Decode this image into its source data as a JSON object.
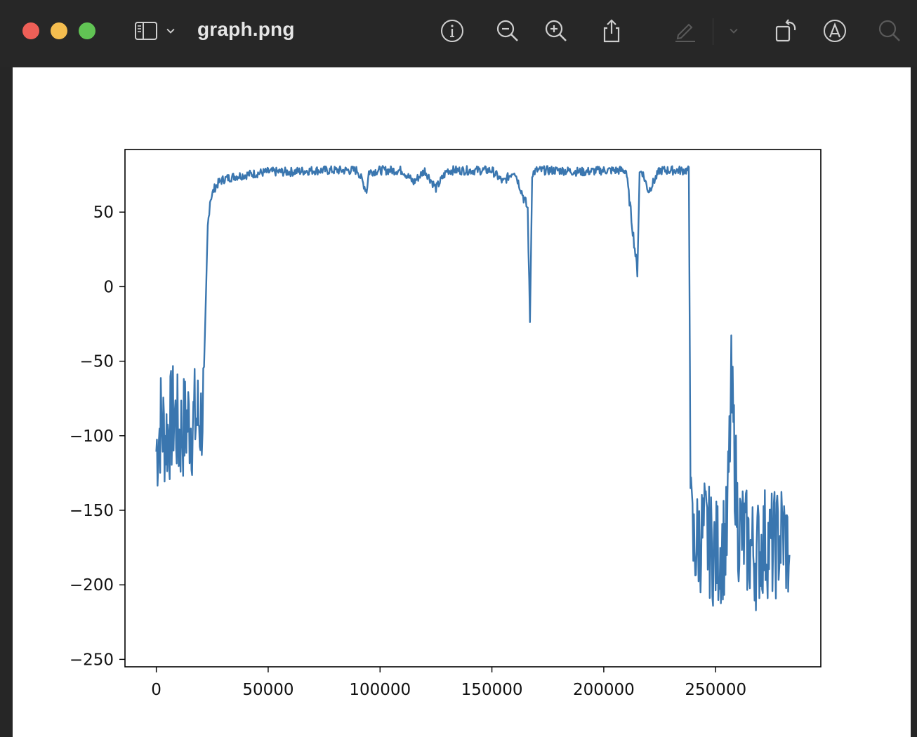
{
  "window": {
    "title": "graph.png"
  },
  "toolbar": {
    "icons": [
      "sidebar-icon",
      "chevron-down-icon",
      "info-icon",
      "zoom-out-icon",
      "zoom-in-icon",
      "share-icon",
      "markup-pen-icon",
      "chevron-down-icon",
      "rotate-icon",
      "annotate-icon",
      "search-icon"
    ]
  },
  "colors": {
    "titlebar": "#272727",
    "series": "#3a76af",
    "close": "#ee5f57",
    "minimize": "#f4bd4f",
    "maximize": "#61c454"
  },
  "chart_data": {
    "type": "line",
    "title": "",
    "xlabel": "",
    "ylabel": "",
    "xlim": [
      -14000,
      297000
    ],
    "ylim": [
      -255,
      92
    ],
    "xticks": [
      0,
      50000,
      100000,
      150000,
      200000,
      250000
    ],
    "xtick_labels": [
      "0",
      "50000",
      "100000",
      "150000",
      "200000",
      "250000"
    ],
    "yticks": [
      50,
      0,
      -50,
      -100,
      -150,
      -200,
      -250
    ],
    "ytick_labels": [
      "50",
      "0",
      "−50",
      "−100",
      "−150",
      "−200",
      "−250"
    ],
    "grid": false,
    "legend": "none",
    "series": [
      {
        "x": [
          0,
          2000,
          4000,
          6000,
          8000,
          10000,
          12000,
          14000,
          16000,
          18000,
          20000,
          21000,
          22000,
          23000,
          24000,
          26000,
          28000,
          30000,
          35000,
          40000,
          50000,
          60000,
          70000,
          80000,
          90000,
          94000,
          95000,
          100000,
          110000,
          115000,
          120000,
          125000,
          130000,
          140000,
          150000,
          155000,
          160000,
          166000,
          167000,
          168000,
          170000,
          180000,
          190000,
          200000,
          210000,
          215000,
          216000,
          217000,
          220000,
          225000,
          230000,
          238000,
          238500,
          239000,
          240000,
          245000,
          250000,
          255000,
          257000,
          260000,
          265000,
          268000,
          272000,
          276000,
          280000,
          283000
        ],
        "y": [
          -110,
          -90,
          -100,
          -95,
          -85,
          -100,
          -95,
          -90,
          -92,
          -88,
          -90,
          -75,
          -20,
          40,
          58,
          66,
          70,
          72,
          74,
          75,
          77,
          77,
          78,
          78,
          78,
          64,
          77,
          78,
          78,
          70,
          78,
          66,
          78,
          78,
          78,
          70,
          78,
          52,
          -24,
          76,
          78,
          78,
          77,
          78,
          78,
          10,
          76,
          78,
          64,
          78,
          78,
          78,
          -50,
          -160,
          -175,
          -165,
          -180,
          -170,
          -70,
          -160,
          -175,
          -180,
          -170,
          -175,
          -165,
          -180
        ]
      }
    ]
  }
}
